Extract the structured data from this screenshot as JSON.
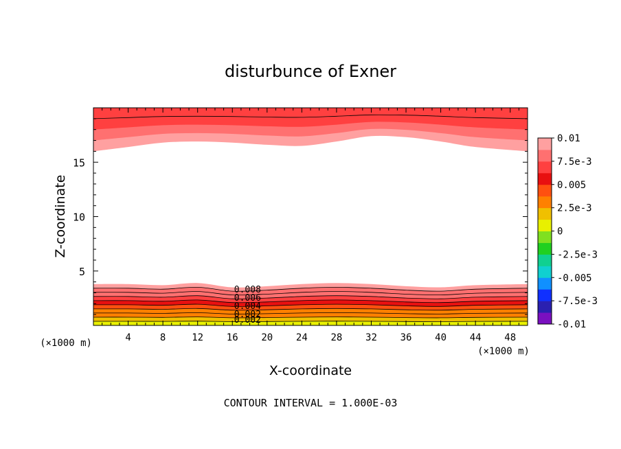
{
  "chart_data": {
    "type": "contour",
    "title": "disturbunce of Exner",
    "xlabel": "X-coordinate",
    "ylabel": "Z-coordinate",
    "x_unit_left": "(×1000 m)",
    "x_unit_right": "(×1000 m)",
    "xlim": [
      0,
      50
    ],
    "ylim": [
      0,
      20
    ],
    "x_ticks": [
      4,
      8,
      12,
      16,
      20,
      24,
      28,
      32,
      36,
      40,
      44,
      48
    ],
    "x_tick_labels": [
      "4",
      "8",
      "12",
      "16",
      "20",
      "24",
      "28",
      "32",
      "36",
      "40",
      "44",
      "48"
    ],
    "y_ticks": [
      5,
      10,
      15
    ],
    "y_tick_labels": [
      "5",
      "10",
      "15"
    ],
    "footer": "CONTOUR INTERVAL = 1.000E-03",
    "contour_interval": 0.001,
    "contour_labels": [
      "0.008",
      "0.006",
      "0.004",
      "0.002",
      "0.002"
    ],
    "colorbar": {
      "min": -0.01,
      "max": 0.01,
      "tick_labels": [
        "0.01",
        "7.5e-3",
        "0.005",
        "2.5e-3",
        "0",
        "-2.5e-3",
        "-0.005",
        "-7.5e-3",
        "-0.01"
      ],
      "colors": [
        "#7a10c0",
        "#2a20b0",
        "#1030ff",
        "#1090ff",
        "#10d0d0",
        "#10d090",
        "#20d020",
        "#80e020",
        "#e8f000",
        "#f0c000",
        "#ff8000",
        "#ff5010",
        "#e81010",
        "#ff4040",
        "#ff7070",
        "#ffa0a0"
      ]
    },
    "bottom_layer_levels": [
      0.0,
      0.001,
      0.002,
      0.003,
      0.004,
      0.005,
      0.006,
      0.007,
      0.008,
      0.009
    ],
    "bottom_layer_top_z": [
      3.8,
      3.8,
      3.7,
      3.9,
      3.5,
      3.6,
      3.8,
      3.9,
      3.8,
      3.6,
      3.5,
      3.7,
      3.8
    ],
    "top_layer_bottom_z": [
      16.0,
      16.4,
      16.8,
      16.9,
      16.8,
      16.6,
      16.5,
      16.9,
      17.4,
      17.3,
      16.9,
      16.4,
      16.0
    ],
    "profile_x": [
      0,
      4,
      8,
      12,
      16,
      20,
      24,
      28,
      32,
      36,
      40,
      44,
      50
    ]
  }
}
